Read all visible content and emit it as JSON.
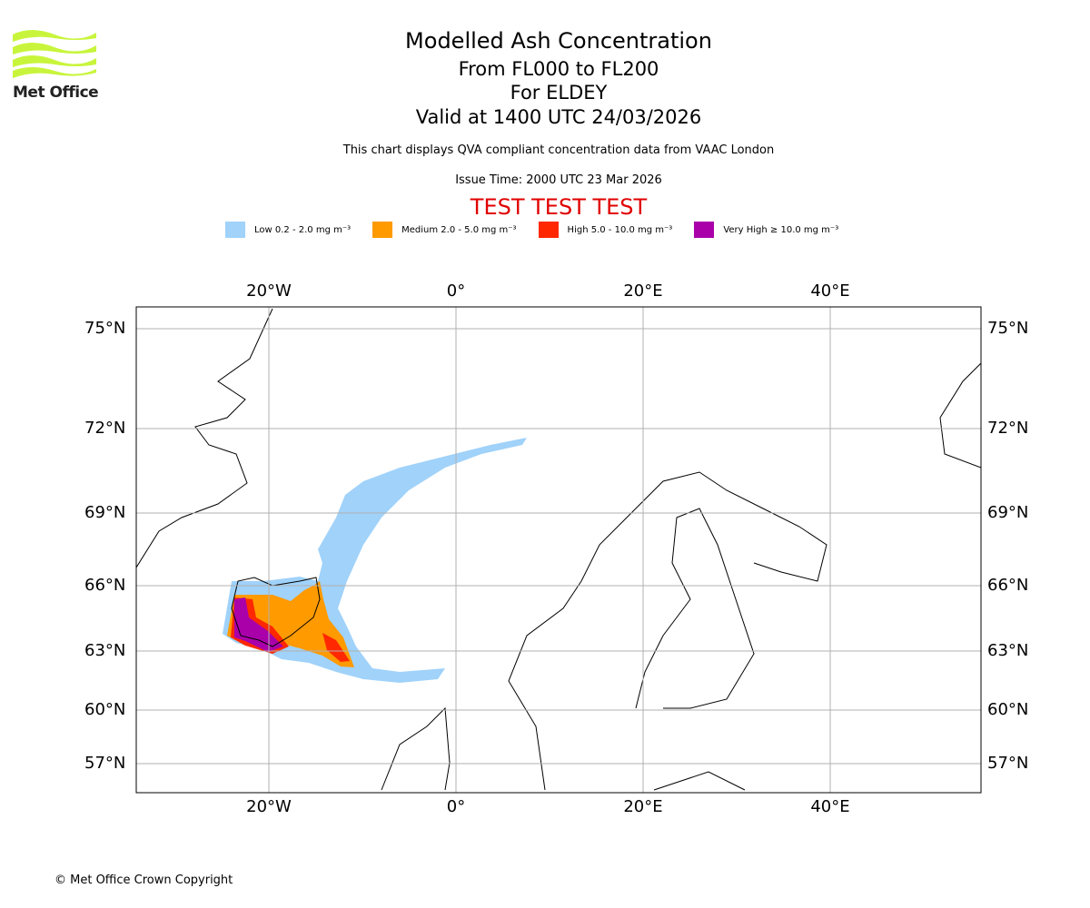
{
  "header": {
    "title": "Modelled Ash Concentration",
    "levels": "From FL000 to FL200",
    "volcano": "For ELDEY",
    "valid": "Valid at 1400 UTC 24/03/2026",
    "note": "This chart displays QVA compliant concentration data from VAAC London",
    "issue": "Issue Time: 2000 UTC 23 Mar 2026",
    "test": "TEST TEST TEST"
  },
  "logo": {
    "text": "Met Office"
  },
  "legend": [
    {
      "label": "Low 0.2 - 2.0 mg m⁻³",
      "color": "#a0d2fa"
    },
    {
      "label": "Medium 2.0 - 5.0 mg m⁻³",
      "color": "#ff9a00"
    },
    {
      "label": "High 5.0 - 10.0 mg m⁻³",
      "color": "#ff2800"
    },
    {
      "label": "Very High ≥ 10.0 mg m⁻³",
      "color": "#aa00aa"
    }
  ],
  "map": {
    "lon_labels": [
      "20°W",
      "0°",
      "20°E",
      "40°E"
    ],
    "lat_labels": [
      "75°N",
      "72°N",
      "69°N",
      "66°N",
      "63°N",
      "60°N",
      "57°N"
    ]
  },
  "footer": {
    "copyright": "© Met Office Crown Copyright"
  }
}
